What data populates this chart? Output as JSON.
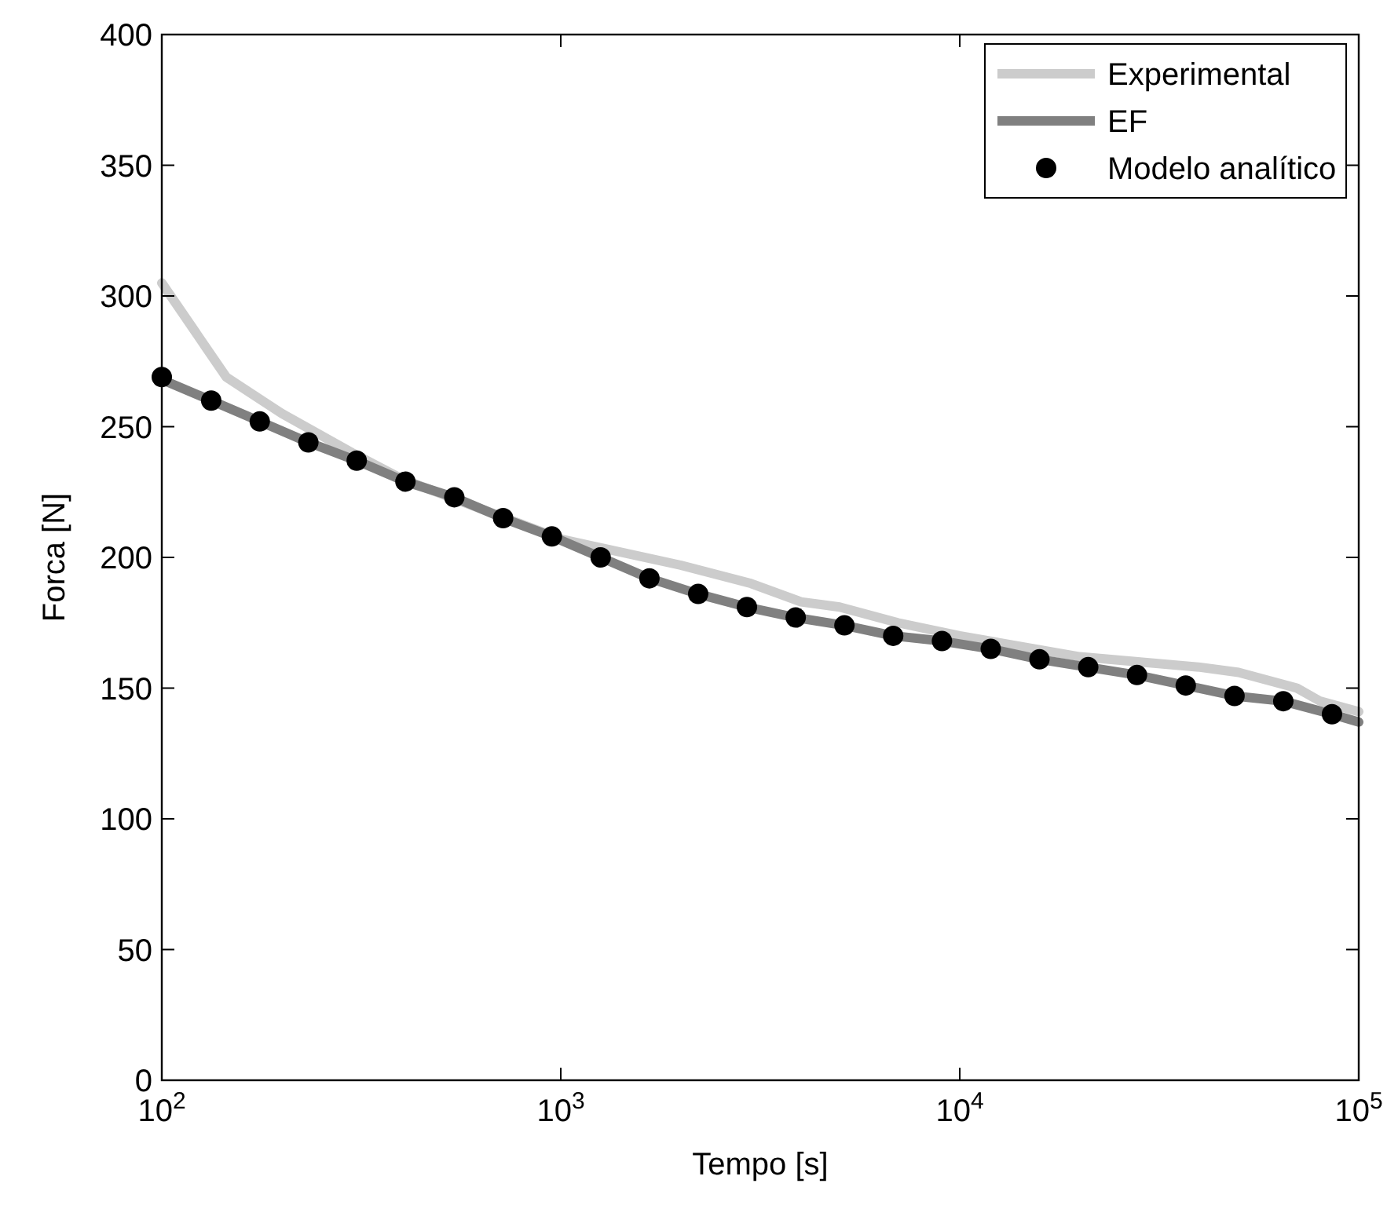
{
  "chart_data": {
    "type": "line",
    "xlabel": "Tempo [s]",
    "ylabel": "Forca [N]",
    "log": "x",
    "xlim": [
      100,
      100000
    ],
    "ylim": [
      0,
      400
    ],
    "xticks": [
      {
        "value": 100,
        "label": "10$^{2}$"
      },
      {
        "value": 1000,
        "label": "10$^{3}$"
      },
      {
        "value": 10000,
        "label": "10$^{4}$"
      },
      {
        "value": 100000,
        "label": "10$^{5}$"
      }
    ],
    "yticks": [
      0,
      50,
      100,
      150,
      200,
      250,
      300,
      350,
      400
    ],
    "grid": false,
    "legend": "top right",
    "series": [
      {
        "name": "Experimental",
        "color": "#cccccc",
        "marker": "none",
        "x": [
          100,
          145,
          200,
          300,
          400,
          1000,
          2000,
          3000,
          4000,
          5000,
          7000,
          10000,
          20000,
          40000,
          50000,
          70000,
          80000,
          100000
        ],
        "values": [
          305,
          269,
          255,
          240,
          230,
          207,
          197,
          190,
          183,
          181,
          175,
          170,
          162,
          158,
          156,
          150,
          145,
          141
        ]
      },
      {
        "name": "EF",
        "color": "#808080",
        "marker": "none",
        "x": [
          100,
          133,
          176,
          233,
          308,
          408,
          541,
          717,
          950,
          1259,
          1668,
          2210,
          2928,
          3880,
          5140,
          6810,
          9025,
          11960,
          15840,
          20990,
          27810,
          36850,
          48830,
          64700,
          85700,
          100000
        ],
        "values": [
          268,
          260,
          252,
          244,
          237,
          229,
          223,
          215,
          208,
          200,
          192,
          186,
          181,
          177,
          174,
          170,
          168,
          165,
          161,
          158,
          155,
          151,
          147,
          145,
          140,
          137
        ]
      },
      {
        "name": "Modelo analítico",
        "color": "#000000",
        "type": "scatter",
        "marker": "circle",
        "x": [
          100,
          133,
          176,
          233,
          308,
          408,
          541,
          717,
          950,
          1259,
          1668,
          2210,
          2928,
          3880,
          5140,
          6810,
          9025,
          11960,
          15840,
          20990,
          27810,
          36850,
          48830,
          64700,
          85700
        ],
        "values": [
          269,
          260,
          252,
          244,
          237,
          229,
          223,
          215,
          208,
          200,
          192,
          186,
          181,
          177,
          174,
          170,
          168,
          165,
          161,
          158,
          155,
          151,
          147,
          145,
          140
        ]
      }
    ]
  }
}
